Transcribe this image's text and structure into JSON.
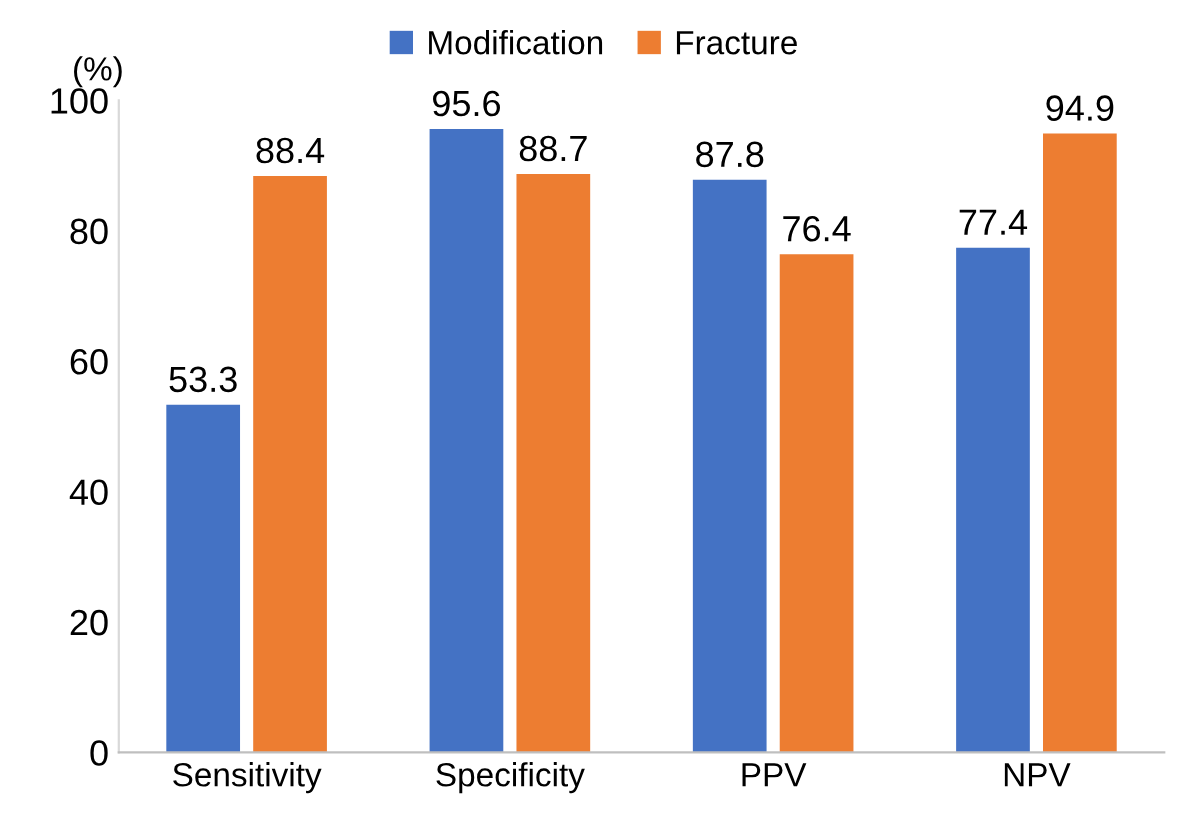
{
  "chart_data": {
    "type": "bar",
    "ylabel": "(%)",
    "categories": [
      "Sensitivity",
      "Specificity",
      "PPV",
      "NPV"
    ],
    "series": [
      {
        "name": "Modification",
        "color": "#4472c4",
        "values": [
          53.3,
          95.6,
          87.8,
          77.4
        ]
      },
      {
        "name": "Fracture",
        "color": "#ed7d31",
        "values": [
          88.4,
          88.7,
          76.4,
          94.9
        ]
      }
    ],
    "ylim": [
      0,
      100
    ],
    "yticks": [
      0,
      20,
      40,
      60,
      80,
      100
    ],
    "data_labels": true,
    "legend": "top",
    "grid": false
  }
}
